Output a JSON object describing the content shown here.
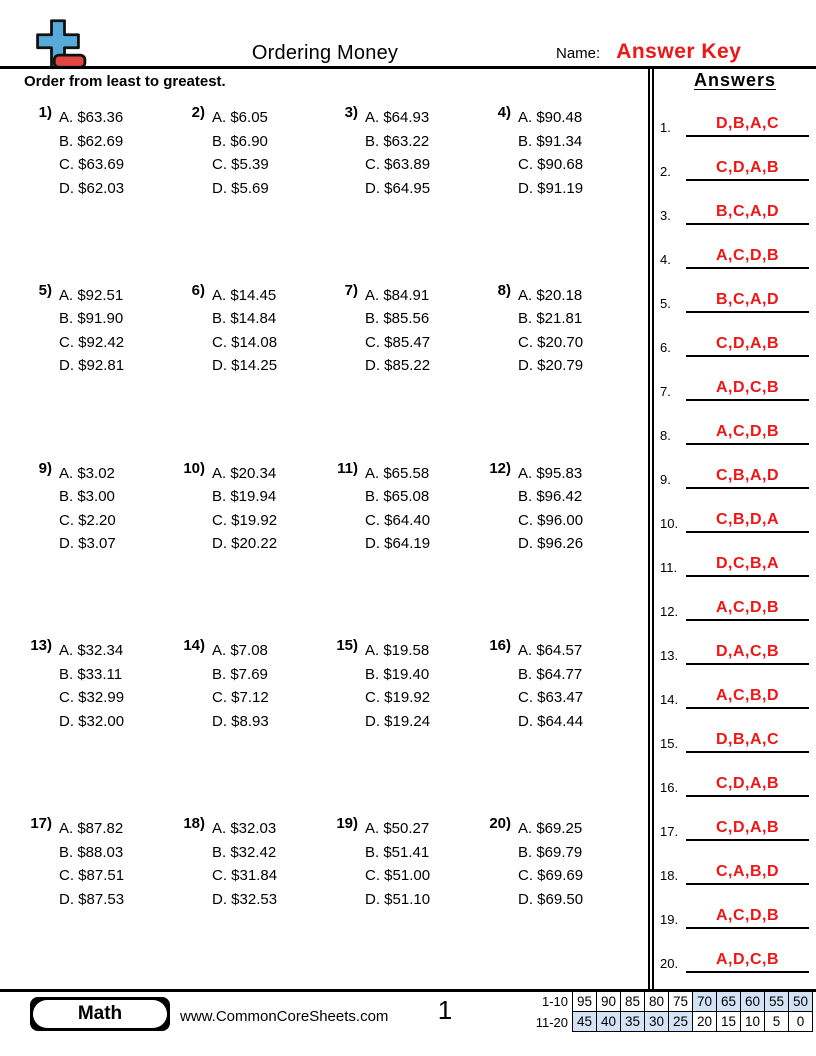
{
  "header": {
    "title": "Ordering Money",
    "name_label": "Name:",
    "name_value": "Answer Key"
  },
  "instruction": "Order from least to greatest.",
  "option_letters": [
    "A.",
    "B.",
    "C.",
    "D."
  ],
  "problems": [
    {
      "number": "1)",
      "values": [
        "$63.36",
        "$62.69",
        "$63.69",
        "$62.03"
      ]
    },
    {
      "number": "2)",
      "values": [
        "$6.05",
        "$6.90",
        "$5.39",
        "$5.69"
      ]
    },
    {
      "number": "3)",
      "values": [
        "$64.93",
        "$63.22",
        "$63.89",
        "$64.95"
      ]
    },
    {
      "number": "4)",
      "values": [
        "$90.48",
        "$91.34",
        "$90.68",
        "$91.19"
      ]
    },
    {
      "number": "5)",
      "values": [
        "$92.51",
        "$91.90",
        "$92.42",
        "$92.81"
      ]
    },
    {
      "number": "6)",
      "values": [
        "$14.45",
        "$14.84",
        "$14.08",
        "$14.25"
      ]
    },
    {
      "number": "7)",
      "values": [
        "$84.91",
        "$85.56",
        "$85.47",
        "$85.22"
      ]
    },
    {
      "number": "8)",
      "values": [
        "$20.18",
        "$21.81",
        "$20.70",
        "$20.79"
      ]
    },
    {
      "number": "9)",
      "values": [
        "$3.02",
        "$3.00",
        "$2.20",
        "$3.07"
      ]
    },
    {
      "number": "10)",
      "values": [
        "$20.34",
        "$19.94",
        "$19.92",
        "$20.22"
      ]
    },
    {
      "number": "11)",
      "values": [
        "$65.58",
        "$65.08",
        "$64.40",
        "$64.19"
      ]
    },
    {
      "number": "12)",
      "values": [
        "$95.83",
        "$96.42",
        "$96.00",
        "$96.26"
      ]
    },
    {
      "number": "13)",
      "values": [
        "$32.34",
        "$33.11",
        "$32.99",
        "$32.00"
      ]
    },
    {
      "number": "14)",
      "values": [
        "$7.08",
        "$7.69",
        "$7.12",
        "$8.93"
      ]
    },
    {
      "number": "15)",
      "values": [
        "$19.58",
        "$19.40",
        "$19.92",
        "$19.24"
      ]
    },
    {
      "number": "16)",
      "values": [
        "$64.57",
        "$64.77",
        "$63.47",
        "$64.44"
      ]
    },
    {
      "number": "17)",
      "values": [
        "$87.82",
        "$88.03",
        "$87.51",
        "$87.53"
      ]
    },
    {
      "number": "18)",
      "values": [
        "$32.03",
        "$32.42",
        "$31.84",
        "$32.53"
      ]
    },
    {
      "number": "19)",
      "values": [
        "$50.27",
        "$51.41",
        "$51.00",
        "$51.10"
      ]
    },
    {
      "number": "20)",
      "values": [
        "$69.25",
        "$69.79",
        "$69.69",
        "$69.50"
      ]
    }
  ],
  "answers": {
    "title": "Answers",
    "items": [
      {
        "number": "1.",
        "value": "D,B,A,C"
      },
      {
        "number": "2.",
        "value": "C,D,A,B"
      },
      {
        "number": "3.",
        "value": "B,C,A,D"
      },
      {
        "number": "4.",
        "value": "A,C,D,B"
      },
      {
        "number": "5.",
        "value": "B,C,A,D"
      },
      {
        "number": "6.",
        "value": "C,D,A,B"
      },
      {
        "number": "7.",
        "value": "A,D,C,B"
      },
      {
        "number": "8.",
        "value": "A,C,D,B"
      },
      {
        "number": "9.",
        "value": "C,B,A,D"
      },
      {
        "number": "10.",
        "value": "C,B,D,A"
      },
      {
        "number": "11.",
        "value": "D,C,B,A"
      },
      {
        "number": "12.",
        "value": "A,C,D,B"
      },
      {
        "number": "13.",
        "value": "D,A,C,B"
      },
      {
        "number": "14.",
        "value": "A,C,B,D"
      },
      {
        "number": "15.",
        "value": "D,B,A,C"
      },
      {
        "number": "16.",
        "value": "C,D,A,B"
      },
      {
        "number": "17.",
        "value": "C,D,A,B"
      },
      {
        "number": "18.",
        "value": "C,A,B,D"
      },
      {
        "number": "19.",
        "value": "A,C,D,B"
      },
      {
        "number": "20.",
        "value": "A,D,C,B"
      }
    ]
  },
  "footer": {
    "subject": "Math",
    "website": "www.CommonCoreSheets.com",
    "page_number": "1",
    "score_table": {
      "rows": [
        {
          "label": "1-10",
          "cells": [
            {
              "value": "95",
              "shaded": false
            },
            {
              "value": "90",
              "shaded": false
            },
            {
              "value": "85",
              "shaded": false
            },
            {
              "value": "80",
              "shaded": false
            },
            {
              "value": "75",
              "shaded": false
            },
            {
              "value": "70",
              "shaded": true
            },
            {
              "value": "65",
              "shaded": true
            },
            {
              "value": "60",
              "shaded": true
            },
            {
              "value": "55",
              "shaded": true
            },
            {
              "value": "50",
              "shaded": true
            }
          ]
        },
        {
          "label": "11-20",
          "cells": [
            {
              "value": "45",
              "shaded": true
            },
            {
              "value": "40",
              "shaded": true
            },
            {
              "value": "35",
              "shaded": true
            },
            {
              "value": "30",
              "shaded": true
            },
            {
              "value": "25",
              "shaded": true
            },
            {
              "value": "20",
              "shaded": false
            },
            {
              "value": "15",
              "shaded": false
            },
            {
              "value": "10",
              "shaded": false
            },
            {
              "value": "5",
              "shaded": false
            },
            {
              "value": "0",
              "shaded": false
            }
          ]
        }
      ]
    }
  },
  "colors": {
    "accent_red": "#ee1616",
    "logo_blue": "#56abdb",
    "logo_red": "#e2473f",
    "table_shade": "#d3e2f4"
  }
}
